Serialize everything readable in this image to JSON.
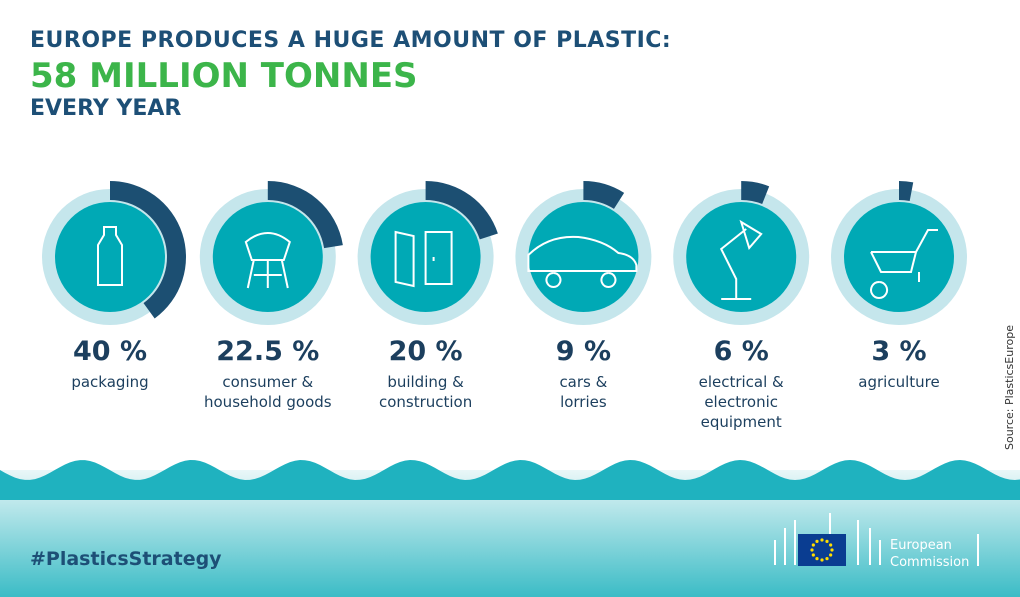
{
  "chart_data": {
    "type": "radial",
    "title": "EUROPE PRODUCES A HUGE AMOUNT OF PLASTIC:",
    "headline": "58 MILLION TONNES",
    "subtitle": "EVERY YEAR",
    "categories": [
      "packaging",
      "consumer & household goods",
      "building & construction",
      "cars & lorries",
      "electrical & electronic equipment",
      "agriculture"
    ],
    "values": [
      40,
      22.5,
      20,
      9,
      6,
      3
    ],
    "value_labels": [
      "40 %",
      "22.5 %",
      "20 %",
      "9 %",
      "6 %",
      "3 %"
    ],
    "color": "#1c4f72",
    "source": "Source: PlasticsEurope"
  },
  "footer": {
    "hashtag": "#PlasticsStrategy",
    "logo": [
      "European",
      "Commission"
    ]
  }
}
